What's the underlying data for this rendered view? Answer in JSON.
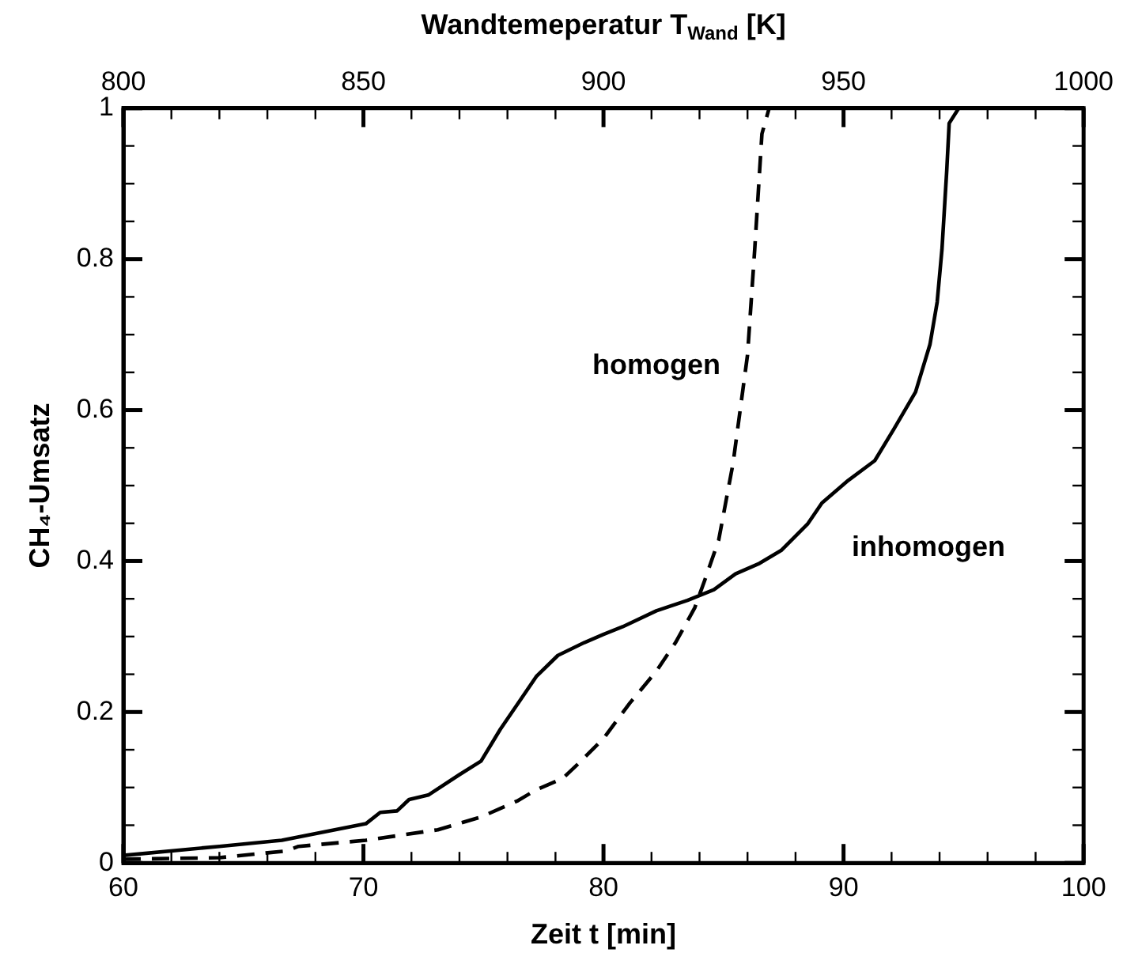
{
  "chart_data": {
    "type": "line",
    "xlabel": "Zeit t [min]",
    "ylabel": "CH₄-Umsatz",
    "x2label": "Wandtemeperatur T$_{Wand}$ [K]",
    "xlim": [
      60,
      100
    ],
    "xticks": [
      60,
      {
        "value": 62,
        "label": null
      },
      {
        "value": 64,
        "label": null
      },
      {
        "value": 66,
        "label": null
      },
      {
        "value": 68,
        "label": null
      },
      70,
      {
        "value": 72,
        "label": null
      },
      {
        "value": 74,
        "label": null
      },
      {
        "value": 76,
        "label": null
      },
      {
        "value": 78,
        "label": null
      },
      80,
      {
        "value": 82,
        "label": null
      },
      {
        "value": 84,
        "label": null
      },
      {
        "value": 86,
        "label": null
      },
      {
        "value": 88,
        "label": null
      },
      90,
      {
        "value": 92,
        "label": null
      },
      {
        "value": 94,
        "label": null
      },
      {
        "value": 96,
        "label": null
      },
      {
        "value": 98,
        "label": null
      },
      100
    ],
    "x2lim": [
      800,
      1000
    ],
    "x2ticks": [
      800,
      {
        "value": 810,
        "label": null
      },
      {
        "value": 820,
        "label": null
      },
      {
        "value": 830,
        "label": null
      },
      {
        "value": 840,
        "label": null
      },
      850,
      {
        "value": 860,
        "label": null
      },
      {
        "value": 870,
        "label": null
      },
      {
        "value": 880,
        "label": null
      },
      {
        "value": 890,
        "label": null
      },
      900,
      {
        "value": 910,
        "label": null
      },
      {
        "value": 920,
        "label": null
      },
      {
        "value": 930,
        "label": null
      },
      {
        "value": 940,
        "label": null
      },
      950,
      {
        "value": 960,
        "label": null
      },
      {
        "value": 970,
        "label": null
      },
      {
        "value": 980,
        "label": null
      },
      {
        "value": 990,
        "label": null
      },
      1000
    ],
    "ylim": [
      0,
      1
    ],
    "yticks": [
      0,
      {
        "value": 0.05,
        "label": null
      },
      {
        "value": 0.1,
        "label": null
      },
      {
        "value": 0.15,
        "label": null
      },
      0.2,
      {
        "value": 0.25,
        "label": null
      },
      {
        "value": 0.3,
        "label": null
      },
      {
        "value": 0.35,
        "label": null
      },
      0.4,
      {
        "value": 0.45,
        "label": null
      },
      {
        "value": 0.5,
        "label": null
      },
      {
        "value": 0.55,
        "label": null
      },
      0.6,
      {
        "value": 0.65,
        "label": null
      },
      {
        "value": 0.7,
        "label": null
      },
      {
        "value": 0.75,
        "label": null
      },
      0.8,
      {
        "value": 0.85,
        "label": null
      },
      {
        "value": 0.9,
        "label": null
      },
      {
        "value": 0.95,
        "label": null
      },
      1
    ],
    "grid": false,
    "legend": "right",
    "marker": "none",
    "series": [
      {
        "name": "inhomogen",
        "color": "#000000",
        "line_style": "solid",
        "x": [
          60,
          64.0,
          66.6,
          70.1,
          70.7,
          71.4,
          71.9,
          72.7,
          74.0,
          74.9,
          75.7,
          76.6,
          77.2,
          78.1,
          79.2,
          80.0,
          80.8,
          82.2,
          83.5,
          84.6,
          85.5,
          86.5,
          87.4,
          88.5,
          89.1,
          90.2,
          91.3,
          92.1,
          93.0,
          93.6,
          93.9,
          94.1,
          94.3,
          94.4,
          94.8,
          100
        ],
        "values": [
          0.01,
          0.022,
          0.03,
          0.052,
          0.067,
          0.069,
          0.084,
          0.09,
          0.117,
          0.135,
          0.177,
          0.219,
          0.247,
          0.275,
          0.292,
          0.303,
          0.313,
          0.334,
          0.348,
          0.362,
          0.383,
          0.397,
          0.414,
          0.449,
          0.477,
          0.507,
          0.533,
          0.575,
          0.624,
          0.687,
          0.743,
          0.813,
          0.918,
          0.98,
          1.0,
          1.0
        ]
      },
      {
        "name": "homogen",
        "color": "#000000",
        "line_style": "dashed",
        "x": [
          60,
          64.0,
          66.8,
          67.3,
          70.1,
          73.1,
          74.9,
          76.4,
          77.2,
          78.3,
          78.9,
          80.0,
          81.1,
          82.2,
          83.0,
          83.8,
          84.2,
          84.8,
          85.4,
          86.0,
          86.3,
          86.6,
          86.9,
          100
        ],
        "values": [
          0.005,
          0.007,
          0.016,
          0.022,
          0.03,
          0.044,
          0.061,
          0.082,
          0.097,
          0.112,
          0.13,
          0.165,
          0.212,
          0.254,
          0.292,
          0.338,
          0.373,
          0.428,
          0.53,
          0.673,
          0.813,
          0.966,
          1.0,
          1.0
        ]
      }
    ]
  }
}
